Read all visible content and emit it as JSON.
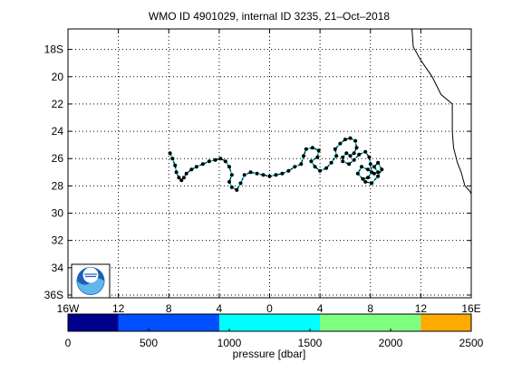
{
  "chart_data": [
    {
      "type": "scatter",
      "title": "WMO ID 4901029, internal ID 3235, 21–Oct–2018",
      "x_tick_labels": [
        "16W",
        "12",
        "8",
        "4",
        "0",
        "4",
        "8",
        "12",
        "16E"
      ],
      "x_tick_values": [
        -16,
        -12,
        -8,
        -4,
        0,
        4,
        8,
        12,
        16
      ],
      "y_tick_labels": [
        "18S",
        "20",
        "22",
        "24",
        "26",
        "28",
        "30",
        "32",
        "34",
        "36S"
      ],
      "y_tick_values": [
        18,
        20,
        22,
        24,
        26,
        28,
        30,
        32,
        34,
        36
      ],
      "xlim": [
        -16,
        16
      ],
      "ylim_latitude_south": [
        16.5,
        36.2
      ],
      "grid": true,
      "grid_style": "dotted",
      "logo": "noaa-logo",
      "coastline": {
        "color": "#000000",
        "points": [
          [
            11.3,
            16.5
          ],
          [
            11.4,
            17.8
          ],
          [
            12.0,
            18.8
          ],
          [
            12.9,
            20.0
          ],
          [
            13.6,
            21.3
          ],
          [
            14.5,
            22.0
          ],
          [
            14.5,
            23.0
          ],
          [
            14.5,
            24.0
          ],
          [
            14.6,
            25.2
          ],
          [
            14.9,
            26.3
          ],
          [
            15.2,
            27.0
          ],
          [
            15.5,
            28.0
          ],
          [
            15.9,
            28.4
          ],
          [
            16.0,
            28.6
          ]
        ]
      },
      "track": {
        "line_color": "#000000",
        "marker_color": "#000000",
        "points": [
          [
            -7.9,
            25.6
          ],
          [
            -7.7,
            26.0
          ],
          [
            -7.5,
            26.5
          ],
          [
            -7.4,
            27.0
          ],
          [
            -7.2,
            27.4
          ],
          [
            -7.0,
            27.6
          ],
          [
            -6.8,
            27.4
          ],
          [
            -6.6,
            27.1
          ],
          [
            -6.2,
            26.8
          ],
          [
            -5.8,
            26.6
          ],
          [
            -5.3,
            26.4
          ],
          [
            -4.8,
            26.2
          ],
          [
            -4.3,
            26.1
          ],
          [
            -3.9,
            26.0
          ],
          [
            -3.5,
            26.2
          ],
          [
            -3.2,
            26.6
          ],
          [
            -3.0,
            27.2
          ],
          [
            -3.2,
            27.7
          ],
          [
            -3.0,
            28.1
          ],
          [
            -2.6,
            28.3
          ],
          [
            -2.3,
            27.8
          ],
          [
            -2.0,
            27.2
          ],
          [
            -1.5,
            27.0
          ],
          [
            -1.0,
            27.1
          ],
          [
            -0.5,
            27.2
          ],
          [
            0.0,
            27.3
          ],
          [
            0.5,
            27.2
          ],
          [
            1.0,
            27.1
          ],
          [
            1.5,
            26.9
          ],
          [
            2.0,
            26.6
          ],
          [
            2.5,
            26.4
          ],
          [
            2.7,
            25.8
          ],
          [
            2.9,
            25.3
          ],
          [
            3.4,
            25.2
          ],
          [
            3.9,
            25.4
          ],
          [
            3.8,
            25.9
          ],
          [
            3.3,
            26.2
          ],
          [
            3.6,
            26.6
          ],
          [
            4.0,
            26.9
          ],
          [
            4.5,
            26.7
          ],
          [
            4.9,
            26.3
          ],
          [
            5.3,
            25.8
          ],
          [
            5.2,
            25.3
          ],
          [
            5.6,
            24.9
          ],
          [
            6.0,
            24.6
          ],
          [
            6.4,
            24.5
          ],
          [
            6.8,
            24.7
          ],
          [
            6.9,
            25.2
          ],
          [
            6.7,
            25.6
          ],
          [
            6.4,
            25.8
          ],
          [
            6.1,
            25.6
          ],
          [
            5.8,
            25.9
          ],
          [
            5.8,
            26.2
          ],
          [
            6.3,
            26.4
          ],
          [
            6.7,
            26.1
          ],
          [
            7.1,
            25.7
          ],
          [
            7.6,
            25.5
          ],
          [
            7.9,
            25.9
          ],
          [
            8.0,
            26.4
          ],
          [
            8.1,
            27.0
          ],
          [
            7.8,
            27.4
          ],
          [
            7.4,
            27.5
          ],
          [
            7.0,
            27.1
          ],
          [
            7.3,
            26.6
          ],
          [
            7.8,
            26.8
          ],
          [
            8.3,
            27.1
          ],
          [
            8.6,
            27.0
          ],
          [
            8.3,
            26.6
          ],
          [
            8.6,
            26.3
          ],
          [
            8.9,
            26.8
          ],
          [
            8.6,
            27.3
          ],
          [
            8.1,
            27.8
          ],
          [
            7.6,
            27.7
          ]
        ]
      }
    },
    {
      "type": "heatmap",
      "title": "",
      "xlabel": "pressure [dbar]",
      "x_tick_labels": [
        "0",
        "500",
        "1000",
        "1500",
        "2000",
        "2500"
      ],
      "x_tick_values": [
        0,
        500,
        1000,
        1500,
        2000,
        2500
      ],
      "xlim": [
        0,
        2500
      ],
      "bins": [
        {
          "from": 0,
          "to": 312,
          "color": "#00008f"
        },
        {
          "from": 312,
          "to": 938,
          "color": "#0050ff"
        },
        {
          "from": 938,
          "to": 1562,
          "color": "#00ffff"
        },
        {
          "from": 1562,
          "to": 2188,
          "color": "#7fff7f"
        },
        {
          "from": 2188,
          "to": 2500,
          "color": "#ffaa00"
        }
      ]
    }
  ]
}
